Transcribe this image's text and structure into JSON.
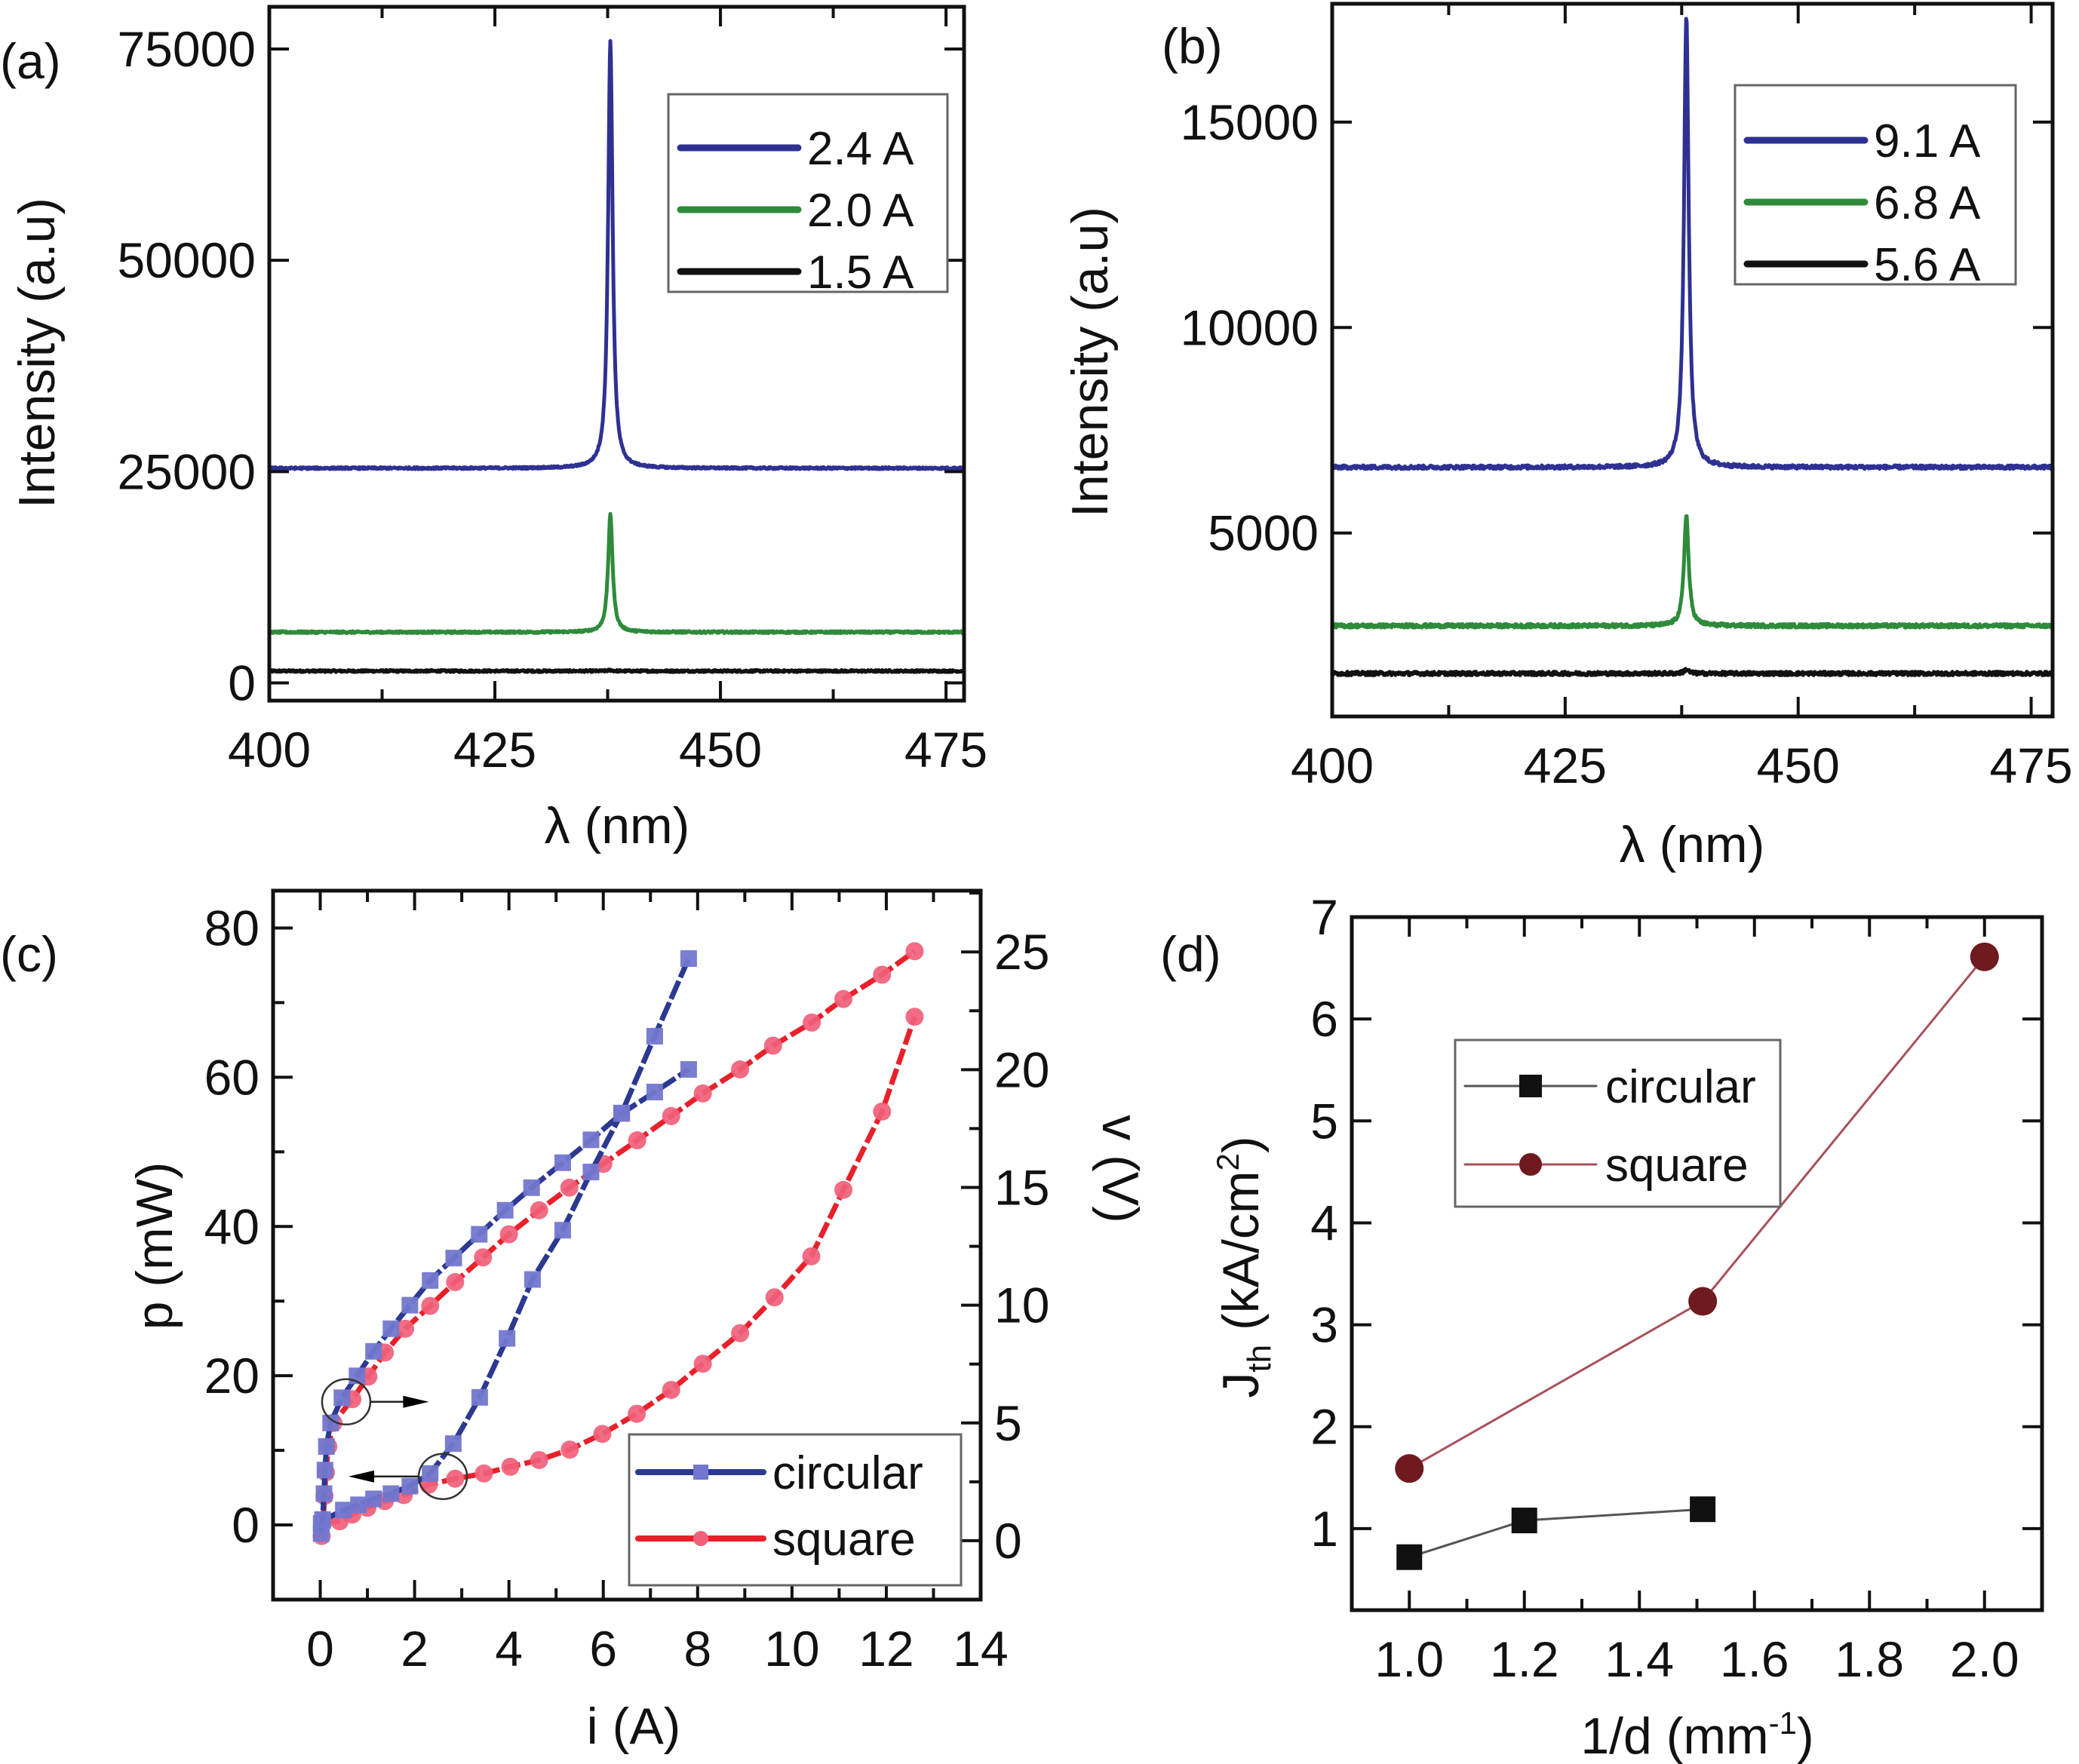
{
  "figure": {
    "panels": [
      "a",
      "b",
      "c",
      "d"
    ]
  },
  "chart_data": [
    {
      "id": "a",
      "type": "line",
      "panel_label": "(a)",
      "title": "",
      "xlabel": "λ (nm)",
      "ylabel": "Intensity (a.u)",
      "xlim": [
        400,
        477
      ],
      "ylim": [
        -2100,
        80000
      ],
      "xticks": [
        400,
        425,
        450,
        475
      ],
      "xtick_labels": [
        "400",
        "425",
        "450",
        "475"
      ],
      "xminor_step": 12.5,
      "yticks": [
        0,
        25000,
        50000,
        75000
      ],
      "ytick_labels": [
        "0",
        "25000",
        "50000",
        "75000"
      ],
      "grid": false,
      "legend_position": "top-right",
      "series": [
        {
          "name": "2.4 A",
          "color": "#2E3192",
          "baseline": 25400,
          "peak": 76000,
          "peak_wavelength": 437.8,
          "fwhm_nm": 0.6,
          "noise": 120
        },
        {
          "name": "2.0 A",
          "color": "#2E8B3A",
          "baseline": 6000,
          "peak": 19900,
          "peak_wavelength": 437.8,
          "fwhm_nm": 0.6,
          "noise": 120
        },
        {
          "name": "1.5 A",
          "color": "#111111",
          "baseline": 1400,
          "peak": 1500,
          "peak_wavelength": 437.8,
          "fwhm_nm": 0.6,
          "noise": 120
        }
      ]
    },
    {
      "id": "b",
      "type": "line",
      "panel_label": "(b)",
      "title": "",
      "xlabel": "λ (nm)",
      "ylabel": "Intensity (a.u)",
      "xlim": [
        400,
        477.3
      ],
      "ylim": [
        534,
        17880
      ],
      "xticks": [
        400,
        425,
        450,
        475
      ],
      "xtick_labels": [
        "400",
        "425",
        "450",
        "475"
      ],
      "xminor_step": 12.5,
      "yticks": [
        5000,
        10000,
        15000
      ],
      "ytick_labels": [
        "5000",
        "10000",
        "15000"
      ],
      "grid": false,
      "legend_position": "top-right",
      "series": [
        {
          "name": "9.1 A",
          "color": "#2E3192",
          "baseline": 6600,
          "peak": 17600,
          "peak_wavelength": 438.0,
          "fwhm_nm": 0.6,
          "noise": 45
        },
        {
          "name": "6.8 A",
          "color": "#2E8B3A",
          "baseline": 2740,
          "peak": 5440,
          "peak_wavelength": 438.0,
          "fwhm_nm": 0.6,
          "noise": 45
        },
        {
          "name": "5.6 A",
          "color": "#111111",
          "baseline": 1580,
          "peak": 1680,
          "peak_wavelength": 438.0,
          "fwhm_nm": 0.6,
          "noise": 45
        }
      ]
    },
    {
      "id": "c",
      "type": "line",
      "panel_label": "(c)",
      "title": "",
      "xlabel": "i (A)",
      "ylabel": "p (mW)",
      "ylabel_right": "v (V)",
      "xlim": [
        -1,
        14
      ],
      "ylim": [
        -10,
        85
      ],
      "ylim_right": [
        -2.5,
        27.6
      ],
      "xticks": [
        0,
        2,
        4,
        6,
        8,
        10,
        12,
        14
      ],
      "xtick_labels": [
        "0",
        "2",
        "4",
        "6",
        "8",
        "10",
        "12",
        "14"
      ],
      "xminor_step": 1,
      "yticks": [
        0,
        20,
        40,
        60,
        80
      ],
      "ytick_labels": [
        "0",
        "20",
        "40",
        "60",
        "80"
      ],
      "yminor_step": 10,
      "yticks_right": [
        0,
        5,
        10,
        15,
        20,
        25
      ],
      "ytick_labels_right": [
        "0",
        "5",
        "10",
        "15",
        "20",
        "25"
      ],
      "yminor_step_right": 2.5,
      "grid": false,
      "legend_position": "bottom-right",
      "legend": [
        {
          "name": "circular",
          "color": "#2B3990",
          "marker": "square",
          "marker_color": "#7377CF"
        },
        {
          "name": "square",
          "color": "#E8202A",
          "marker": "circle",
          "marker_color": "#F06079"
        }
      ],
      "series": [
        {
          "name": "circular p",
          "legend": "circular",
          "axis": "left",
          "color": "#2B3990",
          "marker": "square",
          "marker_color": "#7377CF",
          "x": [
            0.02,
            0.05,
            0.49,
            0.81,
            1.13,
            1.5,
            1.9,
            2.33,
            2.82,
            3.38,
            3.96,
            4.5,
            5.14,
            5.74,
            6.39,
            7.09,
            7.81
          ],
          "y": [
            0.2,
            0.6,
            2.0,
            2.7,
            3.5,
            4.2,
            5.2,
            6.9,
            10.9,
            17.1,
            25.0,
            32.9,
            39.5,
            47.3,
            55.2,
            65.5,
            75.9
          ]
        },
        {
          "name": "circular v",
          "legend": "circular",
          "axis": "right",
          "color": "#2B3990",
          "marker": "square",
          "marker_color": "#7377CF",
          "x": [
            0.02,
            0.05,
            0.08,
            0.1,
            0.13,
            0.22,
            0.46,
            0.78,
            1.13,
            1.5,
            1.9,
            2.33,
            2.83,
            3.37,
            3.92,
            4.48,
            5.14,
            5.74,
            6.39,
            7.09,
            7.81
          ],
          "y": [
            0.3,
            0.9,
            2.0,
            3.0,
            4.0,
            5.0,
            6.07,
            7.0,
            8.04,
            9.0,
            10.0,
            11.05,
            12.0,
            13.01,
            14.03,
            14.99,
            16.05,
            17.02,
            18.14,
            19.05,
            20.01
          ]
        },
        {
          "name": "square p",
          "legend": "square",
          "axis": "left",
          "color": "#E8202A",
          "marker": "circle",
          "marker_color": "#F06079",
          "x": [
            0.06,
            0.41,
            0.68,
            1.0,
            1.37,
            1.77,
            2.3,
            2.86,
            3.47,
            4.03,
            4.64,
            5.29,
            5.98,
            6.71,
            7.44,
            8.11,
            8.9,
            9.63,
            10.41,
            11.09,
            11.91,
            12.6
          ],
          "y": [
            0.3,
            0.5,
            1.4,
            2.3,
            3.2,
            4.0,
            5.4,
            6.2,
            6.9,
            7.8,
            8.7,
            10.1,
            12.2,
            14.9,
            18.1,
            21.6,
            25.7,
            30.5,
            36.0,
            44.9,
            55.4,
            68.1
          ]
        },
        {
          "name": "square v",
          "legend": "square",
          "axis": "right",
          "color": "#E8202A",
          "marker": "circle",
          "marker_color": "#F06079",
          "x": [
            0.03,
            0.06,
            0.09,
            0.12,
            0.17,
            0.28,
            0.68,
            1.02,
            1.37,
            1.8,
            2.33,
            2.86,
            3.45,
            4.0,
            4.64,
            5.28,
            6.0,
            6.72,
            7.44,
            8.11,
            8.9,
            9.6,
            10.42,
            11.09,
            11.91,
            12.6
          ],
          "y": [
            0.2,
            0.8,
            1.9,
            2.9,
            4.0,
            5.0,
            6.01,
            6.97,
            7.99,
            9.0,
            9.97,
            10.98,
            12.03,
            13.01,
            14.03,
            14.99,
            16.0,
            17.0,
            18.03,
            18.99,
            20.01,
            21.02,
            22.0,
            23.0,
            24.03,
            25.03
          ]
        }
      ],
      "annotations": [
        {
          "type": "circle-arrow",
          "target_axis": "right",
          "x": 0.55,
          "y_left": 16.5,
          "arrow_direction": "right",
          "arrow_to_x": 2.3
        },
        {
          "type": "circle-arrow",
          "target_axis": "left",
          "x": 2.6,
          "y_left": 6.5,
          "arrow_direction": "left",
          "arrow_to_x": 0.6
        }
      ]
    },
    {
      "id": "d",
      "type": "line",
      "panel_label": "(d)",
      "title": "",
      "xlabel": "1/d (mm",
      "xlabel_sup": "-1",
      "xlabel_end": ")",
      "ylabel": "J",
      "ylabel_sub": "th",
      "ylabel_mid": " (kA/cm",
      "ylabel_sup": "2",
      "ylabel_end": ")",
      "xlim": [
        0.9,
        2.1
      ],
      "ylim": [
        0.2,
        7.0
      ],
      "xticks": [
        1.0,
        1.2,
        1.4,
        1.6,
        1.8,
        2.0
      ],
      "xtick_labels": [
        "1.0",
        "1.2",
        "1.4",
        "1.6",
        "1.8",
        "2.0"
      ],
      "xminor_step": 0.1,
      "yticks": [
        1,
        2,
        3,
        4,
        5,
        6,
        7
      ],
      "ytick_labels": [
        "1",
        "2",
        "3",
        "4",
        "5",
        "6",
        "7"
      ],
      "grid": false,
      "legend_position": "top-left",
      "series": [
        {
          "name": "circular",
          "color": "#111111",
          "line_color": "#555555",
          "marker": "square",
          "marker_color": "#111111",
          "x": [
            1.0,
            1.2,
            1.51
          ],
          "y": [
            0.72,
            1.08,
            1.19
          ]
        },
        {
          "name": "square",
          "color": "#6E1A1F",
          "line_color": "#A8505A",
          "marker": "circle",
          "marker_color": "#6E1A1F",
          "x": [
            1.0,
            1.51,
            2.0
          ],
          "y": [
            1.59,
            3.23,
            6.61
          ]
        }
      ]
    }
  ]
}
